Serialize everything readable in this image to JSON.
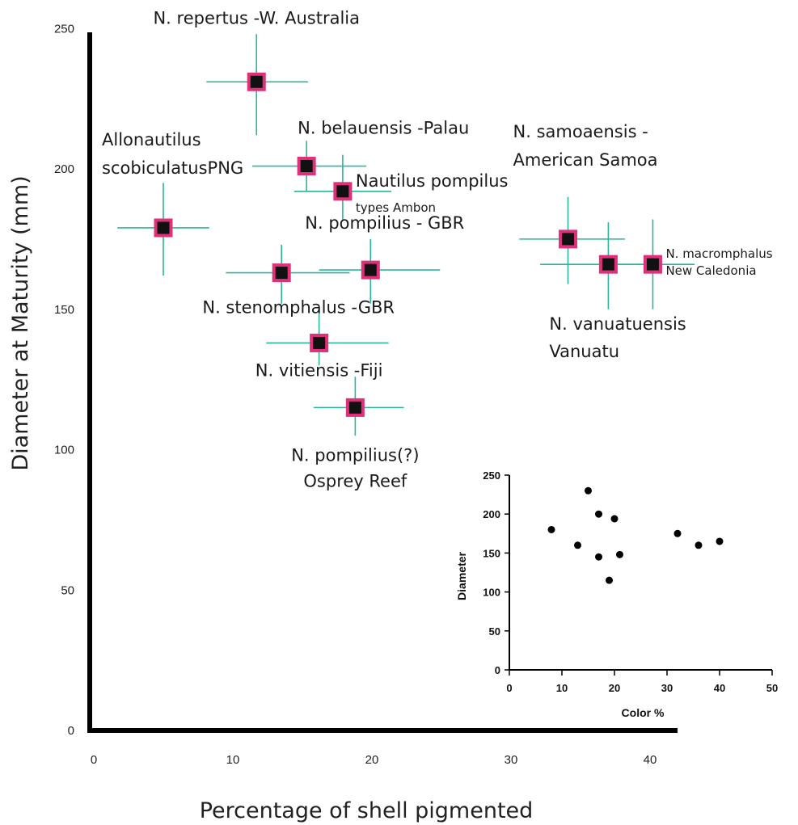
{
  "chart_data": [
    {
      "type": "scatter",
      "error_bars": true,
      "xlabel": "Percentage of shell pigmented",
      "ylabel": "Diameter at Maturity (mm)",
      "xlim": [
        0,
        42
      ],
      "ylim": [
        0,
        250
      ],
      "xticks": [
        "0",
        "10",
        "20",
        "30",
        "40"
      ],
      "yticks": [
        "0",
        "50",
        "100",
        "150",
        "200",
        "250"
      ],
      "colors": {
        "marker_fill": "#111111",
        "marker_border": "#e0307a",
        "error_bar": "#2bb59a",
        "axis": "#000000"
      },
      "points": [
        {
          "x": 11.7,
          "y": 231,
          "xerr": [
            8.1,
            15.4
          ],
          "yerr": [
            212,
            248
          ],
          "label": [
            "N. repertus -W. Australia"
          ]
        },
        {
          "x": 15.3,
          "y": 201,
          "xerr": [
            11.4,
            19.6
          ],
          "yerr": [
            192,
            210
          ],
          "label": [
            "N. belauensis -Palau"
          ]
        },
        {
          "x": 17.9,
          "y": 192,
          "xerr": [
            14.4,
            21.4
          ],
          "yerr": [
            182,
            205
          ],
          "label": [
            "Nautilus pompilus",
            "types Ambon"
          ]
        },
        {
          "x": 5.0,
          "y": 179,
          "xerr": [
            1.7,
            8.3
          ],
          "yerr": [
            162,
            195
          ],
          "label": [
            "Allonautilus",
            "scobiculatusPNG"
          ]
        },
        {
          "x": 13.5,
          "y": 163,
          "xerr": [
            9.5,
            18.4
          ],
          "yerr": [
            152,
            173
          ],
          "label": [
            "N. stenomphalus -GBR"
          ]
        },
        {
          "x": 19.9,
          "y": 164,
          "xerr": [
            16.2,
            24.9
          ],
          "yerr": [
            152,
            175
          ],
          "label": [
            "N. pompilius - GBR"
          ]
        },
        {
          "x": 16.2,
          "y": 138,
          "xerr": [
            12.4,
            21.2
          ],
          "yerr": [
            130,
            150
          ],
          "label": [
            "N. vitiensis -Fiji"
          ]
        },
        {
          "x": 18.8,
          "y": 115,
          "xerr": [
            15.8,
            22.3
          ],
          "yerr": [
            105,
            126
          ],
          "label": [
            "N. pompilius(?)",
            "Osprey Reef"
          ]
        },
        {
          "x": 34.1,
          "y": 175,
          "xerr": [
            30.6,
            38.2
          ],
          "yerr": [
            159,
            190
          ],
          "label": [
            "N. samoaensis -",
            "American Samoa"
          ]
        },
        {
          "x": 37.0,
          "y": 166,
          "xerr": [
            32.1,
            40.4
          ],
          "yerr": [
            150,
            181
          ],
          "label": [
            "N. vanuatuensis",
            "Vanuatu"
          ]
        },
        {
          "x": 40.2,
          "y": 166,
          "xerr": [
            36.3,
            43.2
          ],
          "yerr": [
            150,
            182
          ],
          "label": [
            "N. macromphalus",
            "New Caledonia"
          ]
        }
      ]
    },
    {
      "type": "scatter",
      "inset": true,
      "xlabel": "Color %",
      "ylabel": "Diameter",
      "xlim": [
        0,
        50
      ],
      "ylim": [
        0,
        250
      ],
      "xticks": [
        "0",
        "10",
        "20",
        "30",
        "40",
        "50"
      ],
      "yticks": [
        "0",
        "50",
        "100",
        "150",
        "200",
        "250"
      ],
      "color": "#000000",
      "points": [
        {
          "x": 8,
          "y": 180
        },
        {
          "x": 13,
          "y": 160
        },
        {
          "x": 15,
          "y": 230
        },
        {
          "x": 17,
          "y": 200
        },
        {
          "x": 17,
          "y": 145
        },
        {
          "x": 19,
          "y": 115
        },
        {
          "x": 20,
          "y": 194
        },
        {
          "x": 21,
          "y": 148
        },
        {
          "x": 32,
          "y": 175
        },
        {
          "x": 36,
          "y": 160
        },
        {
          "x": 40,
          "y": 165
        }
      ]
    }
  ]
}
